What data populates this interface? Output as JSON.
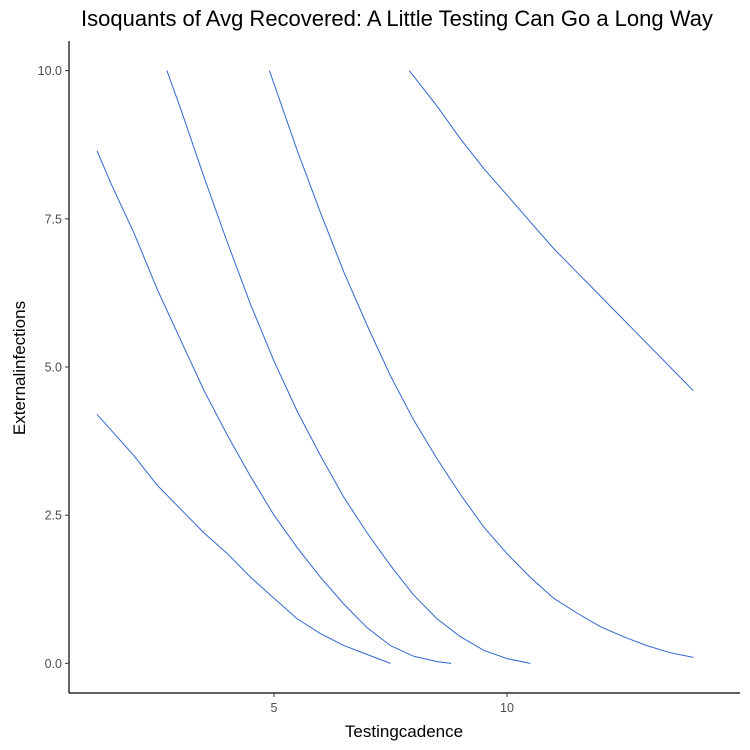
{
  "chart_data": {
    "type": "line",
    "title": "Isoquants of Avg Recovered: A Little Testing Can Go a Long Way",
    "xlabel": "Testingcadence",
    "ylabel": "Externalinfections",
    "xlim": [
      0.6,
      15.0
    ],
    "ylim": [
      -0.5,
      10.5
    ],
    "x_ticks": [
      5,
      10
    ],
    "x_tick_labels": [
      "5",
      "10"
    ],
    "y_ticks": [
      0.0,
      2.5,
      5.0,
      7.5,
      10.0
    ],
    "y_tick_labels": [
      "0.0",
      "2.5",
      "5.0",
      "7.5",
      "10.0"
    ],
    "grid": false,
    "legend": "none",
    "line_color": "#3366cc",
    "series": [
      {
        "x": [
          1.2,
          1.6,
          2.0,
          2.5,
          3.0,
          3.5,
          4.0,
          4.5,
          5.0,
          5.5,
          6.0,
          6.5,
          7.0,
          7.5
        ],
        "y": [
          4.2,
          3.85,
          3.5,
          3.0,
          2.6,
          2.2,
          1.85,
          1.45,
          1.1,
          0.75,
          0.5,
          0.3,
          0.15,
          0.0
        ]
      },
      {
        "x": [
          1.2,
          1.5,
          2.0,
          2.5,
          3.0,
          3.5,
          4.0,
          4.5,
          5.0,
          5.5,
          6.0,
          6.5,
          7.0,
          7.5,
          8.0,
          8.5,
          8.8
        ],
        "y": [
          8.65,
          8.1,
          7.25,
          6.3,
          5.45,
          4.6,
          3.85,
          3.15,
          2.5,
          1.95,
          1.45,
          1.0,
          0.6,
          0.3,
          0.12,
          0.03,
          0.0
        ]
      },
      {
        "x": [
          2.7,
          3.0,
          3.5,
          4.0,
          4.5,
          5.0,
          5.5,
          6.0,
          6.5,
          7.0,
          7.5,
          8.0,
          8.5,
          9.0,
          9.5,
          10.0,
          10.5
        ],
        "y": [
          10.0,
          9.35,
          8.2,
          7.1,
          6.05,
          5.1,
          4.25,
          3.5,
          2.8,
          2.2,
          1.65,
          1.15,
          0.75,
          0.45,
          0.22,
          0.08,
          0.0
        ]
      },
      {
        "x": [
          4.9,
          5.5,
          6.0,
          6.5,
          7.0,
          7.5,
          8.0,
          8.5,
          9.0,
          9.5,
          10.0,
          10.5,
          11.0,
          11.5,
          12.0,
          12.5,
          13.0,
          13.5,
          14.0
        ],
        "y": [
          10.0,
          8.65,
          7.6,
          6.6,
          5.7,
          4.85,
          4.1,
          3.45,
          2.85,
          2.3,
          1.85,
          1.45,
          1.1,
          0.85,
          0.62,
          0.45,
          0.3,
          0.18,
          0.1
        ]
      },
      {
        "x": [
          7.9,
          8.5,
          9.0,
          9.5,
          10.0,
          10.5,
          11.0,
          11.5,
          12.0,
          12.5,
          13.0,
          13.5,
          14.0
        ],
        "y": [
          10.0,
          9.4,
          8.85,
          8.35,
          7.9,
          7.45,
          7.0,
          6.6,
          6.2,
          5.8,
          5.4,
          5.0,
          4.6
        ]
      }
    ]
  }
}
